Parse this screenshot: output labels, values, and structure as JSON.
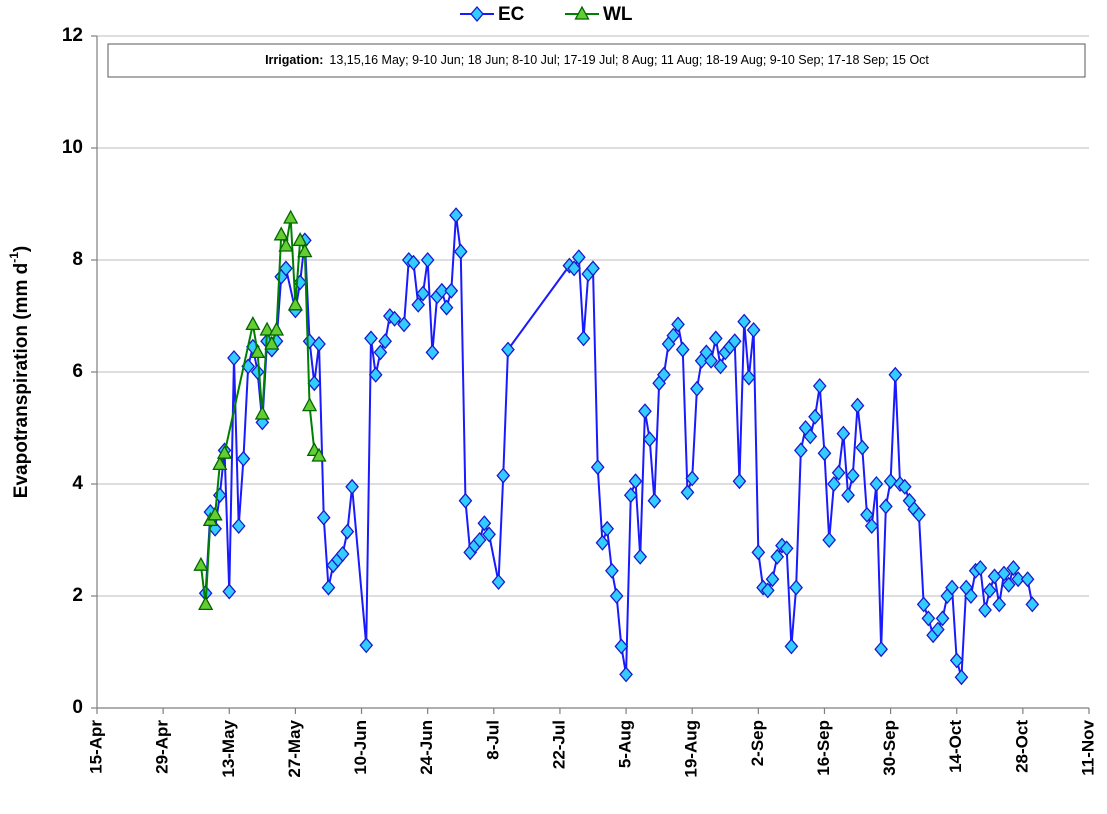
{
  "chart_data": {
    "type": "line",
    "ylabel": "Evapotranspiration (mm d",
    "ylabel_sup": "-1",
    "ylabel_end": ")",
    "annotation": {
      "label": "Irrigation:",
      "text": "13,15,16 May; 9-10 Jun; 18 Jun; 8-10 Jul; 17-19 Jul; 8 Aug; 11 Aug; 18-19 Aug; 9-10 Sep; 17-18 Sep; 15 Oct"
    },
    "xlim": [
      "15-Apr",
      "11-Nov"
    ],
    "xticks": [
      "15-Apr",
      "29-Apr",
      "13-May",
      "27-May",
      "10-Jun",
      "24-Jun",
      "8-Jul",
      "22-Jul",
      "5-Aug",
      "19-Aug",
      "2-Sep",
      "16-Sep",
      "30-Sep",
      "14-Oct",
      "28-Oct",
      "11-Nov"
    ],
    "ylim": [
      0,
      12
    ],
    "yticks": [
      0,
      2,
      4,
      6,
      8,
      10,
      12
    ],
    "grid": true,
    "legend": "top",
    "series": [
      {
        "name": "EC",
        "color": "#1a1aff",
        "marker": "diamond",
        "marker_color": "#33ccff",
        "x": [
          "8-May",
          "9-May",
          "10-May",
          "11-May",
          "12-May",
          "13-May",
          "14-May",
          "15-May",
          "16-May",
          "17-May",
          "18-May",
          "19-May",
          "20-May",
          "21-May",
          "22-May",
          "23-May",
          "24-May",
          "25-May",
          "27-May",
          "28-May",
          "29-May",
          "30-May",
          "31-May",
          "1-Jun",
          "2-Jun",
          "3-Jun",
          "4-Jun",
          "5-Jun",
          "6-Jun",
          "7-Jun",
          "8-Jun",
          "11-Jun",
          "12-Jun",
          "13-Jun",
          "14-Jun",
          "15-Jun",
          "16-Jun",
          "17-Jun",
          "19-Jun",
          "20-Jun",
          "21-Jun",
          "22-Jun",
          "23-Jun",
          "24-Jun",
          "25-Jun",
          "26-Jun",
          "27-Jun",
          "28-Jun",
          "29-Jun",
          "30-Jun",
          "1-Jul",
          "2-Jul",
          "3-Jul",
          "4-Jul",
          "5-Jul",
          "6-Jul",
          "7-Jul",
          "9-Jul",
          "10-Jul",
          "11-Jul",
          "24-Jul",
          "25-Jul",
          "26-Jul",
          "27-Jul",
          "28-Jul",
          "29-Jul",
          "30-Jul",
          "31-Jul",
          "1-Aug",
          "2-Aug",
          "3-Aug",
          "4-Aug",
          "5-Aug",
          "6-Aug",
          "7-Aug",
          "8-Aug",
          "9-Aug",
          "10-Aug",
          "11-Aug",
          "12-Aug",
          "13-Aug",
          "14-Aug",
          "15-Aug",
          "16-Aug",
          "17-Aug",
          "18-Aug",
          "19-Aug",
          "20-Aug",
          "21-Aug",
          "22-Aug",
          "23-Aug",
          "24-Aug",
          "25-Aug",
          "26-Aug",
          "27-Aug",
          "28-Aug",
          "29-Aug",
          "30-Aug",
          "31-Aug",
          "1-Sep",
          "2-Sep",
          "3-Sep",
          "4-Sep",
          "5-Sep",
          "6-Sep",
          "7-Sep",
          "8-Sep",
          "9-Sep",
          "10-Sep",
          "11-Sep",
          "12-Sep",
          "13-Sep",
          "14-Sep",
          "15-Sep",
          "16-Sep",
          "17-Sep",
          "18-Sep",
          "19-Sep",
          "20-Sep",
          "21-Sep",
          "22-Sep",
          "23-Sep",
          "24-Sep",
          "25-Sep",
          "26-Sep",
          "27-Sep",
          "28-Sep",
          "29-Sep",
          "30-Sep",
          "1-Oct",
          "2-Oct",
          "3-Oct",
          "4-Oct",
          "5-Oct",
          "6-Oct",
          "7-Oct",
          "8-Oct",
          "9-Oct",
          "10-Oct",
          "11-Oct",
          "12-Oct",
          "13-Oct",
          "14-Oct",
          "15-Oct",
          "16-Oct",
          "17-Oct",
          "18-Oct",
          "19-Oct",
          "20-Oct",
          "21-Oct",
          "22-Oct",
          "23-Oct",
          "24-Oct",
          "25-Oct",
          "26-Oct",
          "27-Oct",
          "29-Oct",
          "30-Oct"
        ],
        "values": [
          2.05,
          3.5,
          3.2,
          3.8,
          4.6,
          2.08,
          6.25,
          3.25,
          4.45,
          6.1,
          6.45,
          6.0,
          5.1,
          6.55,
          6.4,
          6.55,
          7.7,
          7.85,
          7.1,
          7.6,
          8.35,
          6.55,
          5.8,
          6.5,
          3.4,
          2.15,
          2.55,
          2.65,
          2.75,
          3.15,
          3.95,
          1.12,
          6.6,
          5.95,
          6.35,
          6.55,
          7.0,
          6.95,
          6.85,
          8.0,
          7.95,
          7.2,
          7.4,
          8.0,
          6.35,
          7.35,
          7.45,
          7.15,
          7.45,
          8.8,
          8.15,
          3.7,
          2.78,
          2.9,
          3.0,
          3.3,
          3.1,
          2.25,
          4.15,
          6.4,
          7.9,
          7.85,
          8.05,
          6.6,
          7.75,
          7.85,
          4.3,
          2.95,
          3.2,
          2.45,
          2.0,
          1.1,
          0.6,
          3.8,
          4.05,
          2.7,
          5.3,
          4.8,
          3.7,
          5.8,
          5.95,
          6.5,
          6.65,
          6.85,
          6.4,
          3.85,
          4.1,
          5.7,
          6.2,
          6.35,
          6.2,
          6.6,
          6.1,
          6.35,
          6.45,
          6.55,
          4.05,
          6.9,
          5.9,
          6.75,
          2.78,
          2.15,
          2.1,
          2.3,
          2.7,
          2.9,
          2.85,
          1.1,
          2.15,
          4.6,
          5.0,
          4.85,
          5.2,
          5.75,
          4.55,
          3.0,
          4.0,
          4.2,
          4.9,
          3.8,
          4.15,
          5.4,
          4.65,
          3.45,
          3.25,
          4.0,
          1.05,
          3.6,
          4.05,
          5.95,
          4.0,
          3.95,
          3.7,
          3.55,
          3.45,
          1.85,
          1.6,
          1.3,
          1.4,
          1.6,
          2.0,
          2.15,
          0.85,
          0.55,
          2.15,
          2.0,
          2.45,
          2.5,
          1.75,
          2.1,
          2.35,
          1.85,
          2.4,
          2.2,
          2.5,
          2.3,
          2.3,
          1.85
        ]
      },
      {
        "name": "WL",
        "color": "#008000",
        "marker": "triangle",
        "marker_color": "#66cc33",
        "x": [
          "7-May",
          "8-May",
          "9-May",
          "10-May",
          "11-May",
          "12-May",
          "18-May",
          "19-May",
          "20-May",
          "21-May",
          "22-May",
          "23-May",
          "24-May",
          "25-May",
          "26-May",
          "27-May",
          "28-May",
          "29-May",
          "30-May",
          "31-May",
          "1-Jun"
        ],
        "values": [
          2.55,
          1.85,
          3.35,
          3.45,
          4.35,
          4.55,
          6.85,
          6.35,
          5.25,
          6.75,
          6.5,
          6.75,
          8.45,
          8.25,
          8.75,
          7.2,
          8.35,
          8.15,
          5.4,
          4.6,
          4.5
        ]
      }
    ]
  }
}
